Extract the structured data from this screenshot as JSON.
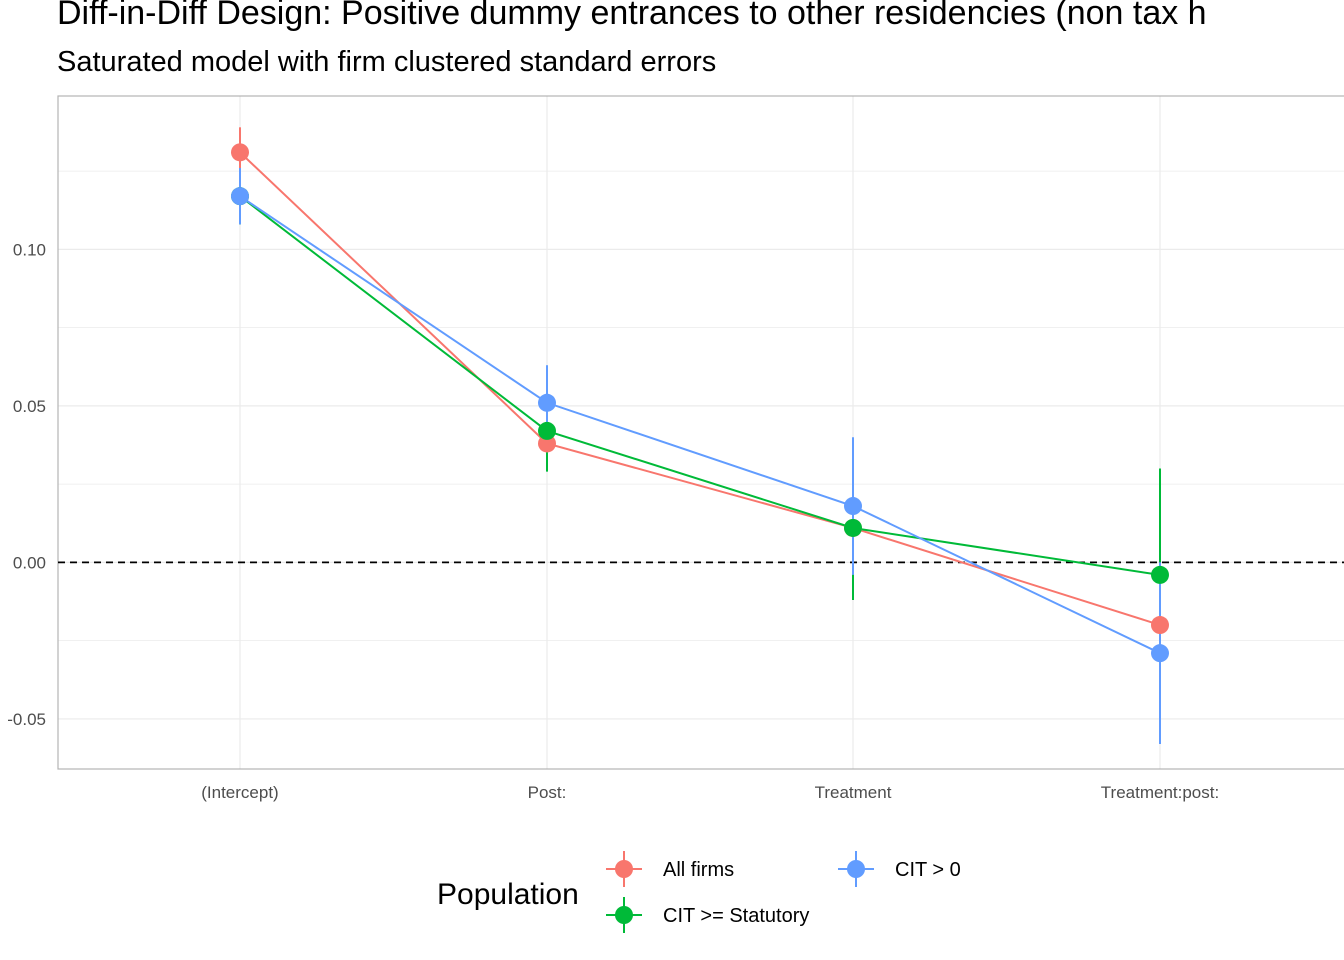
{
  "chart_data": {
    "type": "line",
    "title": "Diff-in-Diff Design: Positive dummy entrances to other residencies (non tax h",
    "subtitle": "Saturated model with firm clustered standard errors",
    "xlabel": "",
    "ylabel": "",
    "categories": [
      "(Intercept)",
      "Post:",
      "Treatment",
      "Treatment:post:"
    ],
    "ylim": [
      -0.066,
      0.149
    ],
    "yticks": [
      -0.05,
      0.0,
      0.05,
      0.1
    ],
    "ytick_labels": [
      "-0.05",
      "0.00",
      "0.05",
      "0.10"
    ],
    "reference_line": {
      "y": 0.0,
      "style": "dashed"
    },
    "grid": true,
    "series": [
      {
        "name": "All firms",
        "color": "#F8766D",
        "values": [
          0.131,
          0.038,
          0.011,
          -0.02
        ],
        "lower": [
          0.123,
          0.033,
          0.009,
          -0.024
        ],
        "upper": [
          0.139,
          0.043,
          0.013,
          -0.016
        ]
      },
      {
        "name": "CIT >= Statutory",
        "color": "#00BA38",
        "values": [
          0.117,
          0.042,
          0.011,
          -0.004
        ],
        "lower": [
          0.108,
          0.029,
          -0.012,
          -0.038
        ],
        "upper": [
          0.126,
          0.055,
          0.034,
          0.03
        ]
      },
      {
        "name": "CIT > 0",
        "color": "#619CFF",
        "values": [
          0.117,
          0.051,
          0.018,
          -0.029
        ],
        "lower": [
          0.108,
          0.039,
          -0.004,
          -0.058
        ],
        "upper": [
          0.126,
          0.063,
          0.04,
          0.0
        ]
      }
    ],
    "legend": {
      "title": "Population",
      "placement": "bottom",
      "entries": [
        "All firms",
        "CIT >= Statutory",
        "CIT > 0"
      ]
    }
  }
}
